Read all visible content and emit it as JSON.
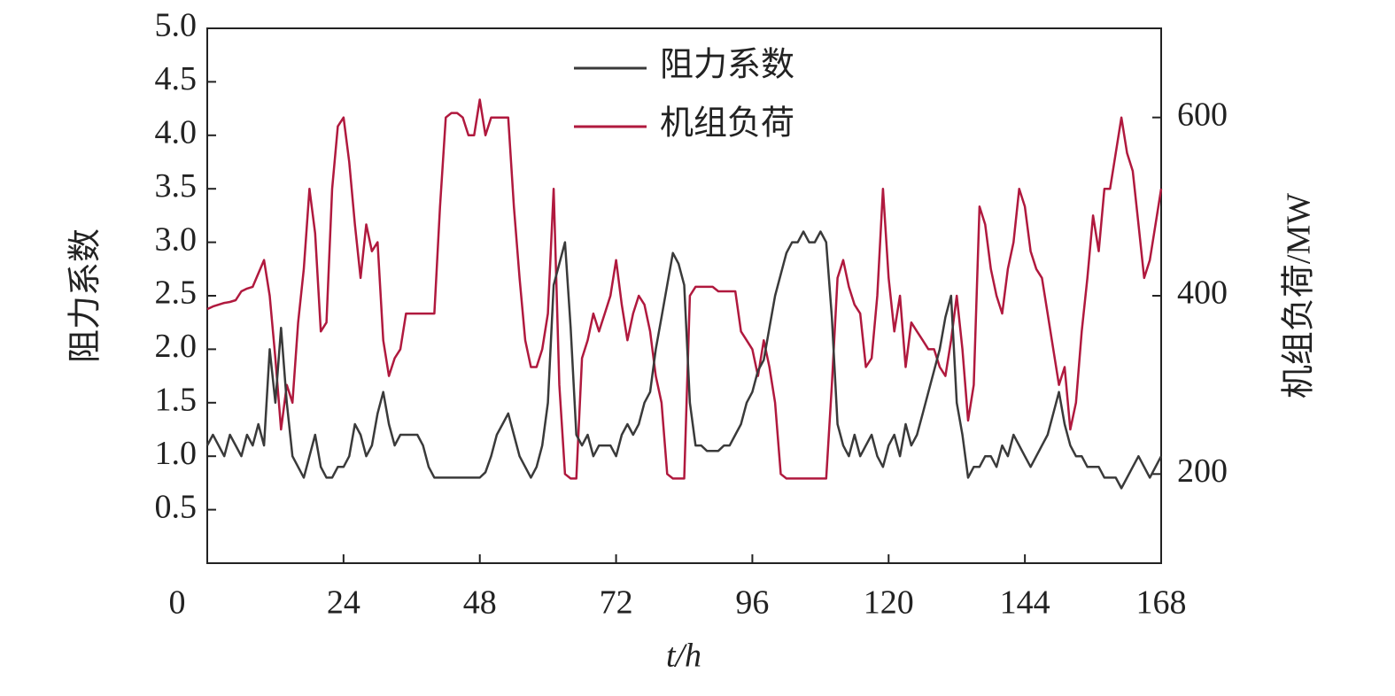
{
  "chart_data": {
    "type": "line",
    "xlabel": "t/h",
    "ylabel": "阻力系数",
    "y2label": "机组负荷/MW",
    "x": [
      0,
      1,
      2,
      3,
      4,
      5,
      6,
      7,
      8,
      9,
      10,
      11,
      12,
      13,
      14,
      15,
      16,
      17,
      18,
      19,
      20,
      21,
      22,
      23,
      24,
      25,
      26,
      27,
      28,
      29,
      30,
      31,
      32,
      33,
      34,
      35,
      36,
      37,
      38,
      39,
      40,
      41,
      42,
      43,
      44,
      45,
      46,
      47,
      48,
      49,
      50,
      51,
      52,
      53,
      54,
      55,
      56,
      57,
      58,
      59,
      60,
      61,
      62,
      63,
      64,
      65,
      66,
      67,
      68,
      69,
      70,
      71,
      72,
      73,
      74,
      75,
      76,
      77,
      78,
      79,
      80,
      81,
      82,
      83,
      84,
      85,
      86,
      87,
      88,
      89,
      90,
      91,
      92,
      93,
      94,
      95,
      96,
      97,
      98,
      99,
      100,
      101,
      102,
      103,
      104,
      105,
      106,
      107,
      108,
      109,
      110,
      111,
      112,
      113,
      114,
      115,
      116,
      117,
      118,
      119,
      120,
      121,
      122,
      123,
      124,
      125,
      126,
      127,
      128,
      129,
      130,
      131,
      132,
      133,
      134,
      135,
      136,
      137,
      138,
      139,
      140,
      141,
      142,
      143,
      144,
      145,
      146,
      147,
      148,
      149,
      150,
      151,
      152,
      153,
      154,
      155,
      156,
      157,
      158,
      159,
      160,
      161,
      162,
      163,
      164,
      165,
      166,
      167,
      168
    ],
    "series": [
      {
        "name": "阻力系数",
        "color": "#3a3a3a",
        "axis": "y",
        "values": [
          1.1,
          1.2,
          1.1,
          1.0,
          1.2,
          1.1,
          1.0,
          1.2,
          1.1,
          1.3,
          1.1,
          2.0,
          1.5,
          2.2,
          1.5,
          1.0,
          0.9,
          0.8,
          1.0,
          1.2,
          0.9,
          0.8,
          0.8,
          0.9,
          0.9,
          1.0,
          1.3,
          1.2,
          1.0,
          1.1,
          1.4,
          1.6,
          1.3,
          1.1,
          1.2,
          1.2,
          1.2,
          1.2,
          1.1,
          0.9,
          0.8,
          0.8,
          0.8,
          0.8,
          0.8,
          0.8,
          0.8,
          0.8,
          0.8,
          0.85,
          1.0,
          1.2,
          1.3,
          1.4,
          1.2,
          1.0,
          0.9,
          0.8,
          0.9,
          1.1,
          1.5,
          2.6,
          2.8,
          3.0,
          2.2,
          1.2,
          1.1,
          1.2,
          1.0,
          1.1,
          1.1,
          1.1,
          1.0,
          1.2,
          1.3,
          1.2,
          1.3,
          1.5,
          1.6,
          2.0,
          2.3,
          2.6,
          2.9,
          2.8,
          2.6,
          1.5,
          1.1,
          1.1,
          1.05,
          1.05,
          1.05,
          1.1,
          1.1,
          1.2,
          1.3,
          1.5,
          1.6,
          1.8,
          1.9,
          2.2,
          2.5,
          2.7,
          2.9,
          3.0,
          3.0,
          3.1,
          3.0,
          3.0,
          3.1,
          3.0,
          2.3,
          1.3,
          1.1,
          1.0,
          1.2,
          1.0,
          1.1,
          1.2,
          1.0,
          0.9,
          1.1,
          1.2,
          1.0,
          1.3,
          1.1,
          1.2,
          1.4,
          1.6,
          1.8,
          2.0,
          2.3,
          2.5,
          1.5,
          1.2,
          0.8,
          0.9,
          0.9,
          1.0,
          1.0,
          0.9,
          1.1,
          1.0,
          1.2,
          1.1,
          1.0,
          0.9,
          1.0,
          1.1,
          1.2,
          1.4,
          1.6,
          1.3,
          1.1,
          1.0,
          1.0,
          0.9,
          0.9,
          0.9,
          0.8,
          0.8,
          0.8,
          0.7,
          0.8,
          0.9,
          1.0,
          0.9,
          0.8,
          0.9,
          1.0
        ]
      },
      {
        "name": "机组负荷",
        "color": "#b0193e",
        "axis": "y2",
        "values": [
          385,
          388,
          390,
          392,
          393,
          395,
          405,
          408,
          410,
          425,
          440,
          400,
          330,
          250,
          300,
          280,
          370,
          430,
          520,
          470,
          360,
          370,
          520,
          590,
          600,
          550,
          480,
          420,
          480,
          450,
          460,
          350,
          310,
          330,
          340,
          380,
          380,
          380,
          380,
          380,
          380,
          500,
          600,
          605,
          605,
          600,
          580,
          580,
          620,
          580,
          600,
          600,
          600,
          600,
          500,
          420,
          350,
          320,
          320,
          340,
          380,
          520,
          300,
          200,
          195,
          195,
          330,
          350,
          380,
          360,
          380,
          400,
          440,
          390,
          350,
          380,
          400,
          390,
          360,
          310,
          280,
          200,
          195,
          195,
          195,
          400,
          410,
          410,
          410,
          410,
          405,
          405,
          405,
          405,
          360,
          350,
          340,
          310,
          350,
          320,
          280,
          200,
          195,
          195,
          195,
          195,
          195,
          195,
          195,
          195,
          300,
          420,
          440,
          410,
          390,
          380,
          320,
          330,
          400,
          520,
          420,
          360,
          400,
          320,
          370,
          360,
          350,
          340,
          340,
          320,
          310,
          350,
          400,
          340,
          260,
          300,
          500,
          480,
          430,
          400,
          380,
          430,
          460,
          520,
          500,
          450,
          430,
          420,
          380,
          340,
          300,
          320,
          250,
          280,
          360,
          420,
          490,
          450,
          520,
          520,
          560,
          600,
          560,
          540,
          480,
          420,
          440,
          480,
          520
        ]
      }
    ],
    "xlim": [
      0,
      168
    ],
    "xticks": [
      0,
      24,
      48,
      72,
      96,
      120,
      144,
      168
    ],
    "ylim": [
      0,
      5
    ],
    "yticks": [
      0.5,
      {
        "value": 1,
        "label": "1.0"
      },
      1.5,
      {
        "value": 2,
        "label": "2.0"
      },
      2.5,
      {
        "value": 3,
        "label": "3.0"
      },
      3.5,
      {
        "value": 4,
        "label": "4.0"
      },
      4.5,
      {
        "value": 5,
        "label": "5.0"
      }
    ],
    "y2lim": [
      100,
      700
    ],
    "y2ticks": [
      200,
      400,
      600
    ],
    "legend": "top"
  }
}
